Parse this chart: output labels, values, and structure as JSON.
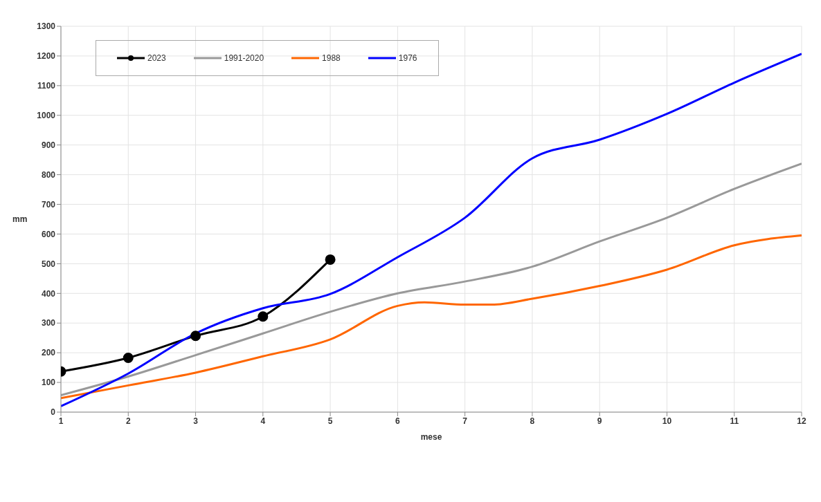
{
  "chart_data": {
    "type": "line",
    "xlabel": "mese",
    "ylabel": "mm",
    "x": [
      1,
      2,
      3,
      4,
      5,
      6,
      7,
      8,
      9,
      10,
      11,
      12
    ],
    "xlim": [
      1,
      12
    ],
    "xticks": [
      1,
      2,
      3,
      4,
      5,
      6,
      7,
      8,
      9,
      10,
      11,
      12
    ],
    "ylim": [
      0,
      1300
    ],
    "yticks": [
      0,
      100,
      200,
      300,
      400,
      500,
      600,
      700,
      800,
      900,
      1000,
      1100,
      1200,
      1300
    ],
    "grid": true,
    "legend": "top left",
    "line_style": "solid",
    "series": [
      {
        "name": "2023",
        "color": "#000000",
        "marker": "circle",
        "x": [
          1,
          2,
          3,
          4,
          5
        ],
        "values": [
          137,
          183,
          257,
          322,
          514
        ]
      },
      {
        "name": "1991-2020",
        "color": "#999999",
        "marker": "none",
        "values": [
          57,
          120,
          192,
          265,
          338,
          400,
          440,
          490,
          575,
          655,
          752,
          837
        ]
      },
      {
        "name": "1988",
        "color": "#ff6600",
        "marker": "none",
        "x": [
          1,
          2,
          3,
          4,
          5,
          6,
          6.4,
          7,
          7.4,
          8,
          9,
          10,
          11,
          12
        ],
        "values": [
          47,
          90,
          133,
          188,
          245,
          358,
          370,
          362,
          362,
          382,
          425,
          480,
          562,
          595
        ]
      },
      {
        "name": "1976",
        "color": "#0000ff",
        "marker": "none",
        "values": [
          20,
          130,
          265,
          350,
          398,
          522,
          655,
          855,
          918,
          1005,
          1110,
          1207
        ]
      }
    ]
  }
}
